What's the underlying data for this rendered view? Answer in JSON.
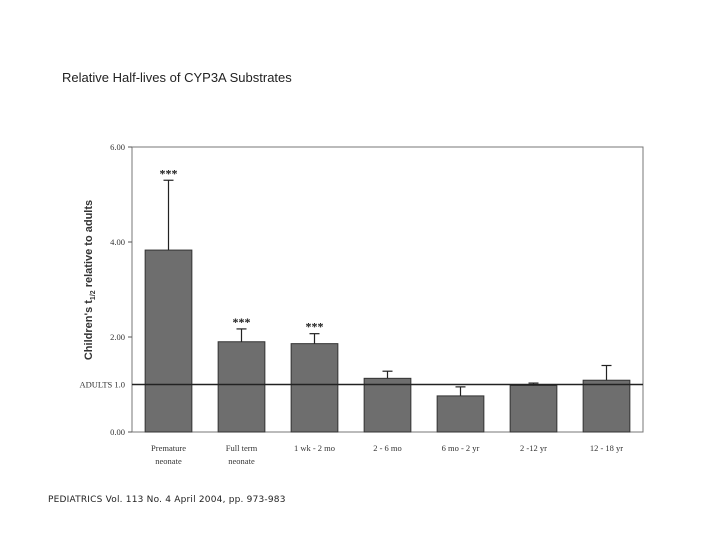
{
  "page": {
    "title": "Relative Half-lives of CYP3A Substrates",
    "citation": "PEDIATRICS Vol. 113 No. 4 April 2004, pp. 973-983"
  },
  "chart_data": {
    "type": "bar",
    "title": "",
    "ylabel": "Children's t",
    "ylabel_sub": "1/2",
    "ylabel_suffix": " relative to adults",
    "ylim": [
      0,
      6
    ],
    "yticks": [
      {
        "value": 0,
        "label": "0.00"
      },
      {
        "value": 2,
        "label": "2.00"
      },
      {
        "value": 4,
        "label": "4.00"
      },
      {
        "value": 6,
        "label": "6.00"
      }
    ],
    "reference_line": {
      "value": 1.0,
      "label": "ADULTS  1.0"
    },
    "categories": [
      {
        "line1": "Premature",
        "line2": "neonate"
      },
      {
        "line1": "Full term",
        "line2": "neonate"
      },
      {
        "line1": "1 wk - 2 mo",
        "line2": ""
      },
      {
        "line1": "2 - 6 mo",
        "line2": ""
      },
      {
        "line1": "6 mo - 2 yr",
        "line2": ""
      },
      {
        "line1": "2 -12 yr",
        "line2": ""
      },
      {
        "line1": "12 - 18 yr",
        "line2": ""
      }
    ],
    "values": [
      3.83,
      1.9,
      1.86,
      1.13,
      0.76,
      0.98,
      1.09
    ],
    "error_upper": [
      5.3,
      2.17,
      2.07,
      1.28,
      0.95,
      1.03,
      1.4
    ],
    "significance": [
      "***",
      "***",
      "***",
      "",
      "",
      "",
      ""
    ],
    "bar_color": "#6e6e6e",
    "grid": false
  }
}
